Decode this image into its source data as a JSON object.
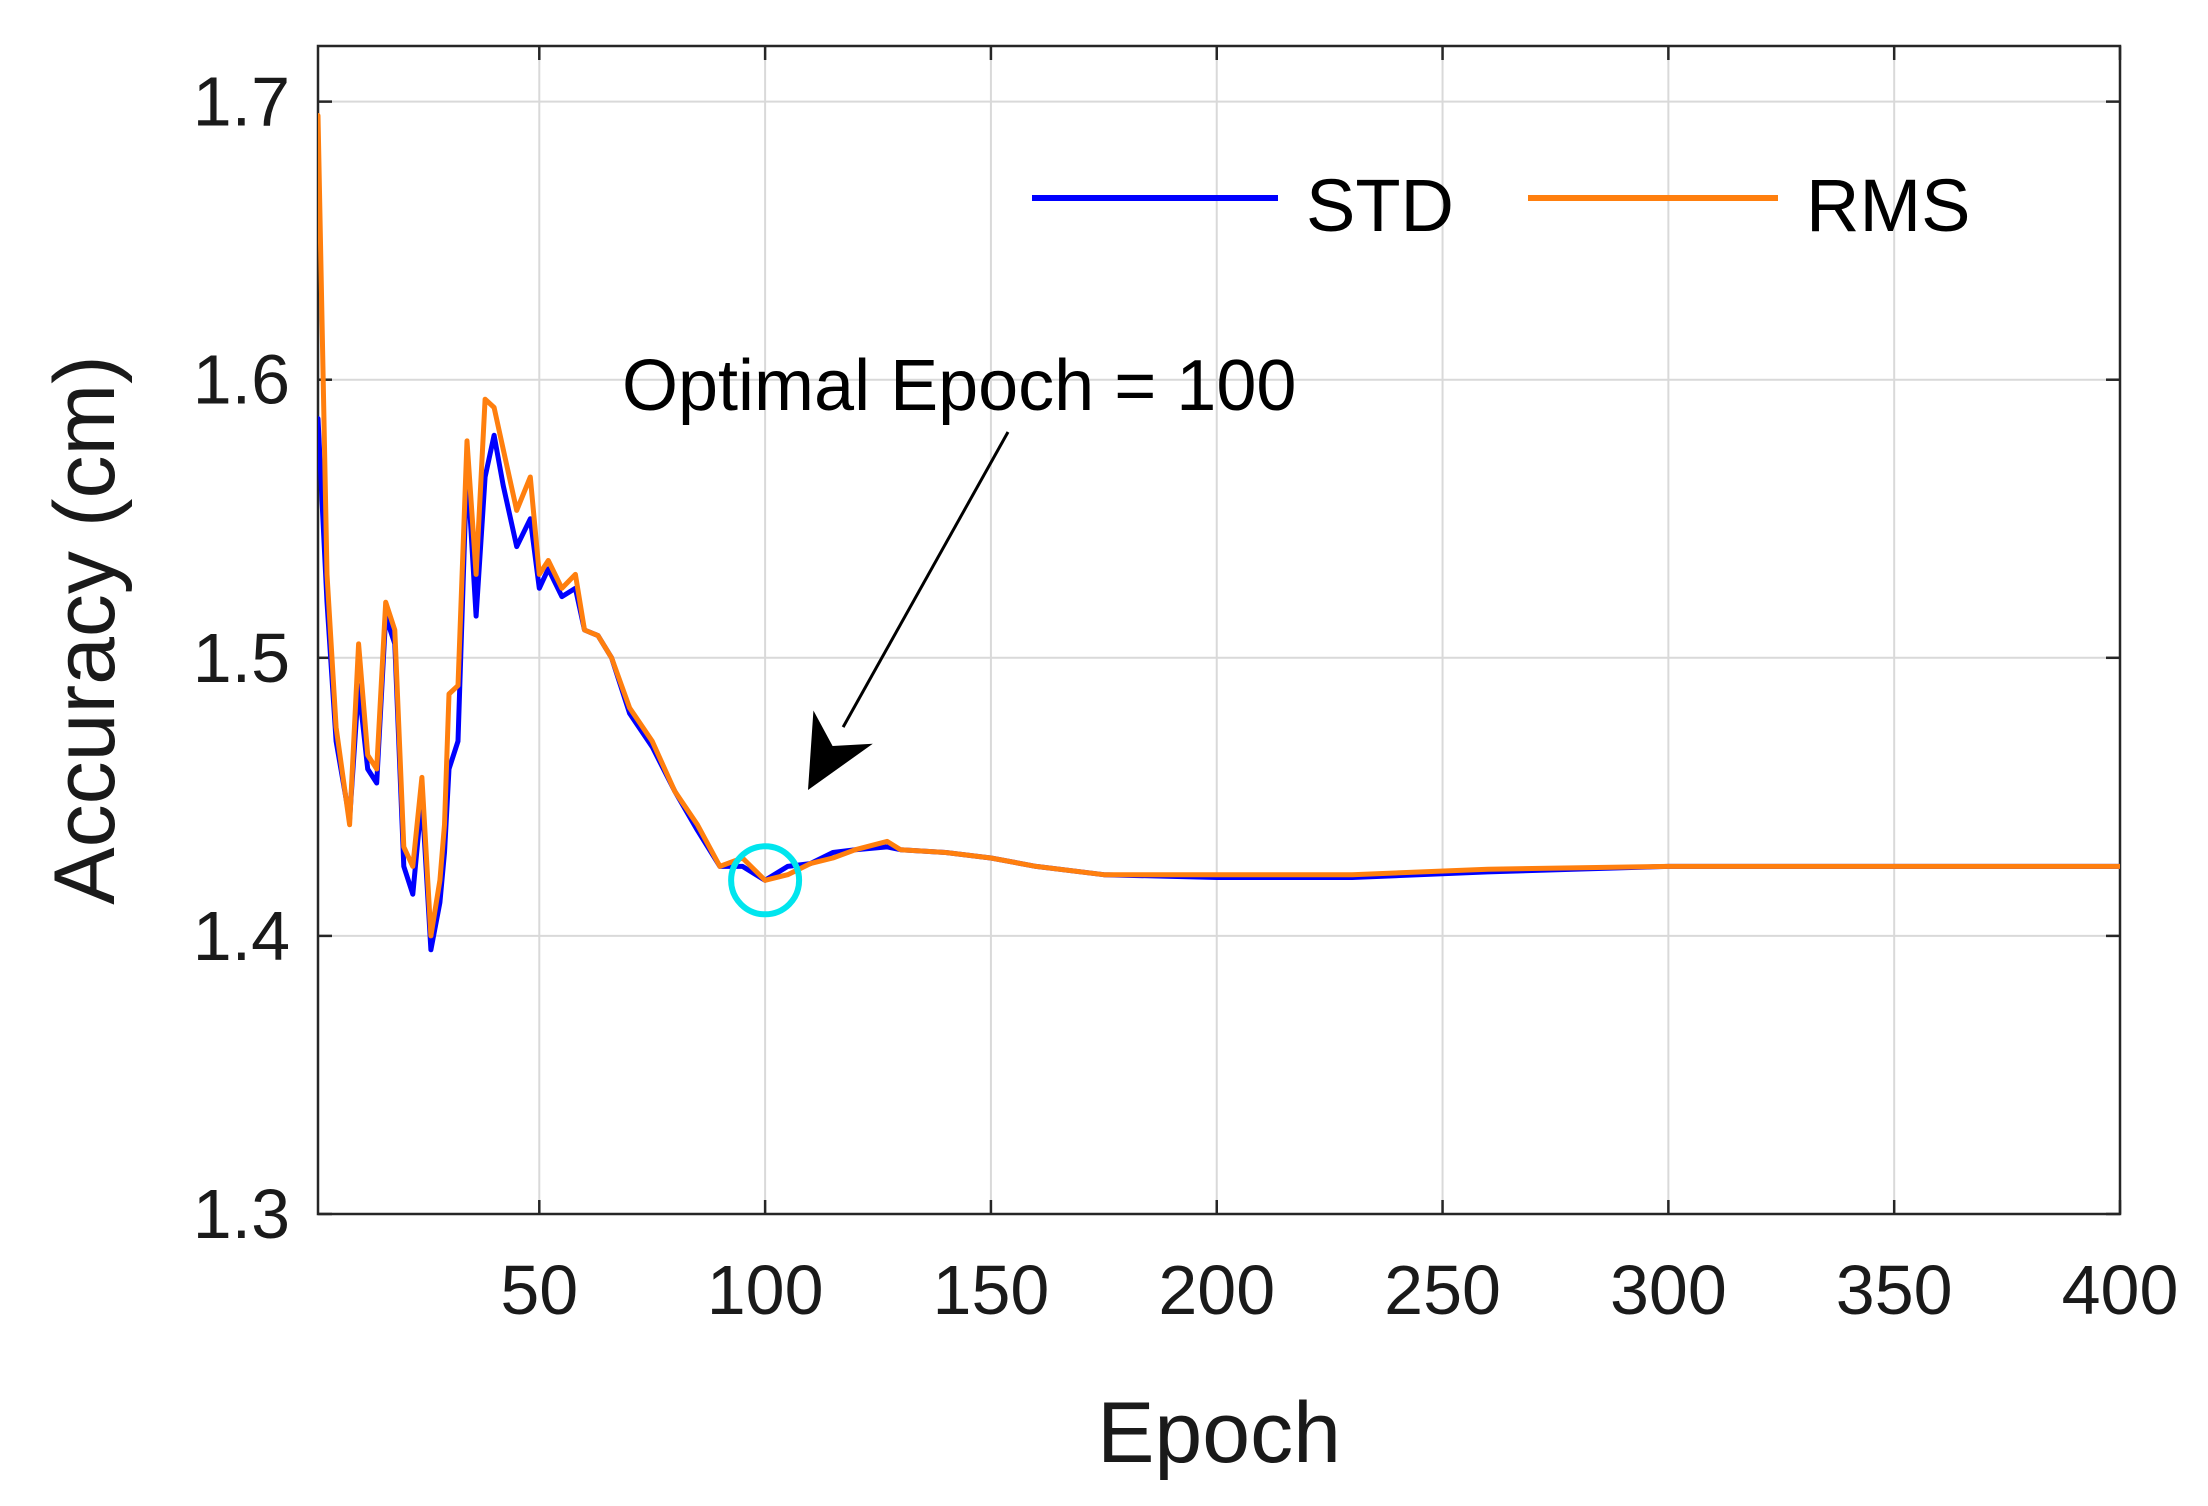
{
  "chart_data": {
    "type": "line",
    "title": "",
    "xlabel": "Epoch",
    "ylabel": "Accuracy (cm)",
    "xlim": [
      1,
      400
    ],
    "ylim": [
      1.3,
      1.72
    ],
    "xticks": [
      50,
      100,
      150,
      200,
      250,
      300,
      350,
      400
    ],
    "xtick_labels": [
      "50",
      "100",
      "150",
      "200",
      "250",
      "300",
      "350",
      "400"
    ],
    "yticks": [
      1.3,
      1.4,
      1.5,
      1.6,
      1.7
    ],
    "ytick_labels": [
      "1.3",
      "1.4",
      "1.5",
      "1.6",
      "1.7"
    ],
    "grid": true,
    "legend_position": "top-right",
    "series": [
      {
        "name": "STD",
        "color": "#0000ff",
        "x": [
          1,
          3,
          5,
          8,
          10,
          12,
          14,
          16,
          18,
          20,
          22,
          24,
          26,
          28,
          29,
          30,
          32,
          34,
          36,
          38,
          40,
          42,
          45,
          48,
          50,
          52,
          55,
          58,
          60,
          63,
          66,
          70,
          75,
          80,
          85,
          90,
          95,
          100,
          105,
          110,
          115,
          120,
          127,
          130,
          140,
          150,
          160,
          175,
          200,
          230,
          260,
          300,
          350,
          400
        ],
        "values": [
          1.586,
          1.52,
          1.47,
          1.442,
          1.49,
          1.46,
          1.455,
          1.515,
          1.505,
          1.425,
          1.415,
          1.45,
          1.395,
          1.412,
          1.43,
          1.46,
          1.47,
          1.57,
          1.515,
          1.565,
          1.58,
          1.562,
          1.54,
          1.55,
          1.525,
          1.532,
          1.522,
          1.525,
          1.51,
          1.508,
          1.5,
          1.48,
          1.468,
          1.452,
          1.438,
          1.425,
          1.425,
          1.42,
          1.425,
          1.426,
          1.43,
          1.431,
          1.432,
          1.431,
          1.43,
          1.428,
          1.425,
          1.422,
          1.421,
          1.421,
          1.423,
          1.425,
          1.425,
          1.425
        ]
      },
      {
        "name": "RMS",
        "color": "#ff7f0e",
        "x": [
          1,
          3,
          5,
          8,
          10,
          12,
          14,
          16,
          18,
          20,
          22,
          24,
          26,
          28,
          29,
          30,
          32,
          34,
          36,
          38,
          40,
          42,
          45,
          48,
          50,
          52,
          55,
          58,
          60,
          63,
          66,
          70,
          75,
          80,
          85,
          90,
          95,
          100,
          105,
          110,
          115,
          120,
          127,
          130,
          140,
          150,
          160,
          175,
          200,
          230,
          260,
          300,
          350,
          400
        ],
        "values": [
          1.695,
          1.53,
          1.475,
          1.44,
          1.505,
          1.465,
          1.46,
          1.52,
          1.51,
          1.432,
          1.425,
          1.457,
          1.4,
          1.42,
          1.44,
          1.487,
          1.49,
          1.578,
          1.53,
          1.593,
          1.59,
          1.575,
          1.553,
          1.565,
          1.53,
          1.535,
          1.525,
          1.53,
          1.51,
          1.508,
          1.5,
          1.482,
          1.47,
          1.452,
          1.44,
          1.425,
          1.428,
          1.42,
          1.422,
          1.426,
          1.428,
          1.431,
          1.434,
          1.431,
          1.43,
          1.428,
          1.425,
          1.422,
          1.422,
          1.422,
          1.424,
          1.425,
          1.425,
          1.425
        ]
      }
    ],
    "annotations": [
      {
        "text": "Optimal Epoch = 100",
        "target_x": 100,
        "target_y": 1.42,
        "arrow": true,
        "marker": "circle",
        "marker_color": "#00e5ee"
      }
    ]
  }
}
